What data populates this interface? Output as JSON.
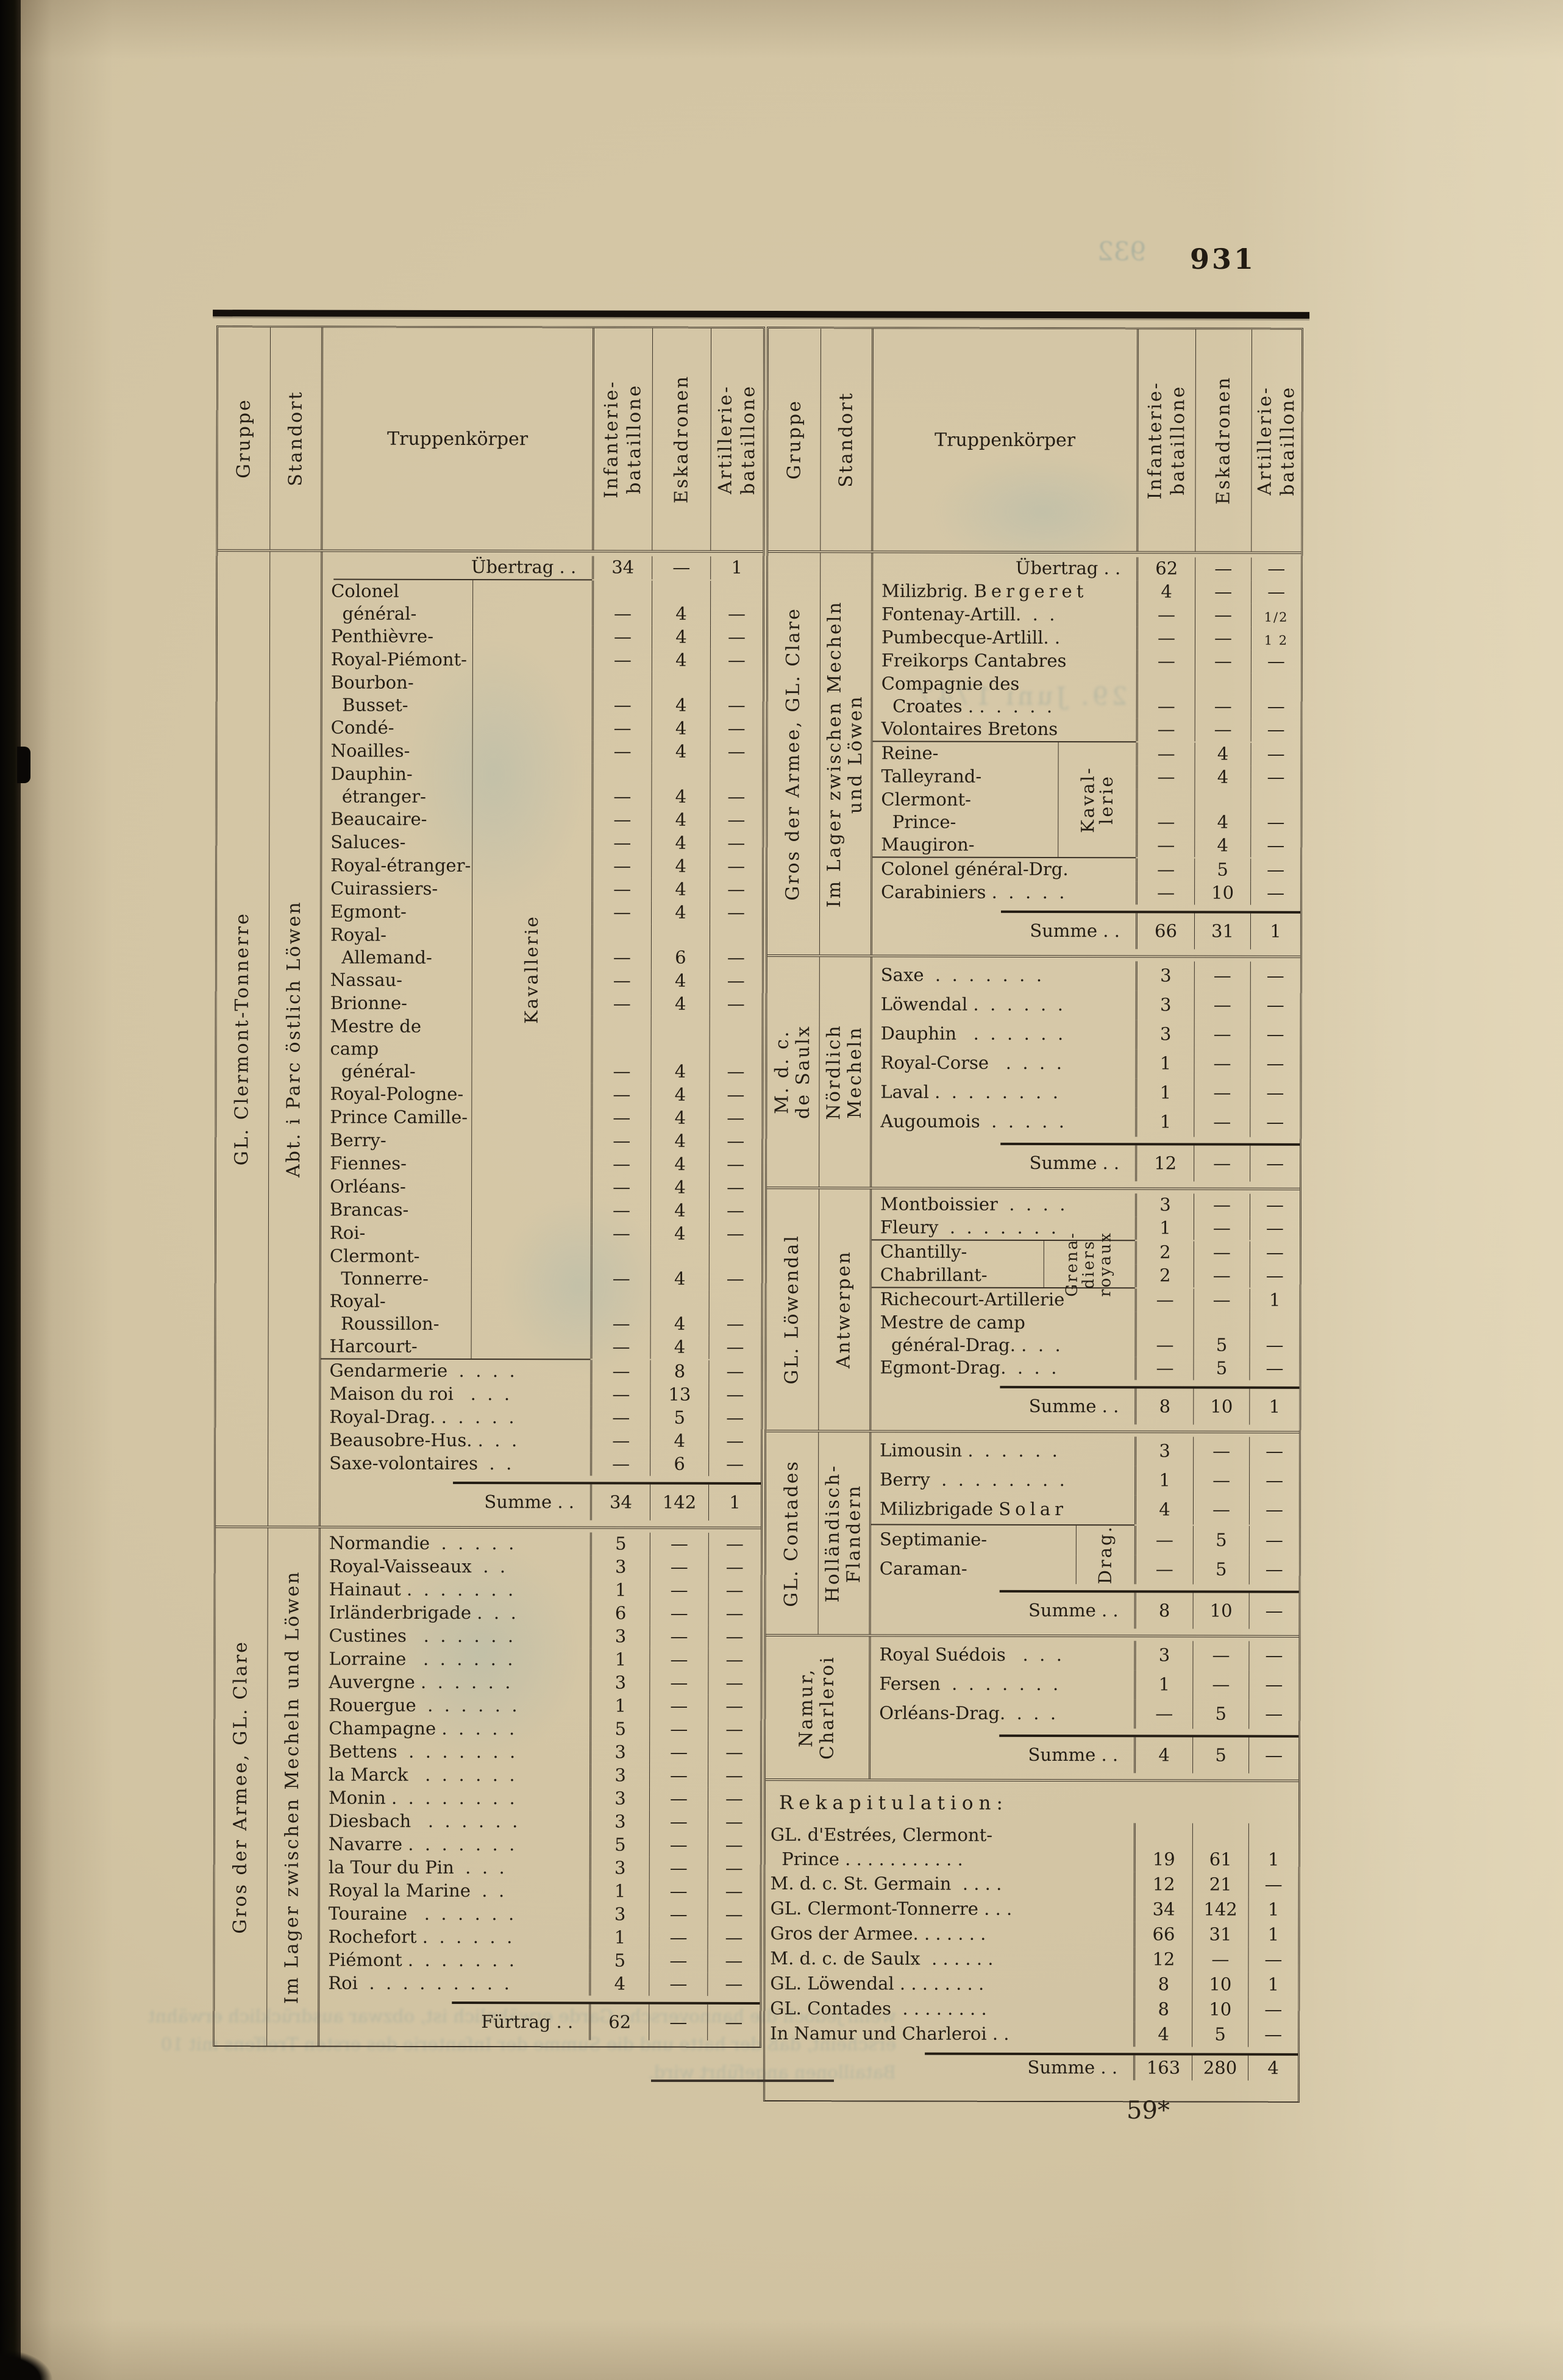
{
  "page": {
    "number": "931",
    "footer_mark": "59*"
  },
  "colors": {
    "paper": "#d5c7a7",
    "ink": "#241d14",
    "rule": "#3a3126",
    "heavy_bar": "#15100c",
    "bleed": "#7f9a96"
  },
  "header": {
    "gruppe": "Gruppe",
    "standort": "Standort",
    "truppen": "Truppenkörper",
    "inf": "Infanterie-\nbataillone",
    "esk": "Eskadronen",
    "art": "Artillerie-\nbataillone"
  },
  "left": {
    "s1": {
      "gruppe": "GL. Clermont-Tonnerre",
      "standort": "Abt. i Parc östlich Löwen",
      "uebertrag": {
        "n": "Übertrag . .",
        "i": "34",
        "e": "—",
        "a": "1"
      },
      "brace": "Kavallerie",
      "cav": [
        {
          "n": "Colonel\n  général-",
          "e": "4"
        },
        {
          "n": "Penthièvre-",
          "e": "4"
        },
        {
          "n": "Royal-Piémont-",
          "e": "4"
        },
        {
          "n": "Bourbon-\n  Busset-",
          "e": "4"
        },
        {
          "n": "Condé-",
          "e": "4"
        },
        {
          "n": "Noailles-",
          "e": "4"
        },
        {
          "n": "Dauphin-\n  étranger-",
          "e": "4"
        },
        {
          "n": "Beaucaire-",
          "e": "4"
        },
        {
          "n": "Saluces-",
          "e": "4"
        },
        {
          "n": "Royal-étranger-",
          "e": "4"
        },
        {
          "n": "Cuirassiers-",
          "e": "4"
        },
        {
          "n": "Egmont-",
          "e": "4"
        },
        {
          "n": "Royal-\n  Allemand-",
          "e": "6"
        },
        {
          "n": "Nassau-",
          "e": "4"
        },
        {
          "n": "Brionne-",
          "e": "4"
        },
        {
          "n": "Mestre de camp\n  général-",
          "e": "4"
        },
        {
          "n": "Royal-Pologne-",
          "e": "4"
        },
        {
          "n": "Prince Camille-",
          "e": "4"
        },
        {
          "n": "Berry-",
          "e": "4"
        },
        {
          "n": "Fiennes-",
          "e": "4"
        },
        {
          "n": "Orléans-",
          "e": "4"
        },
        {
          "n": "Brancas-",
          "e": "4"
        },
        {
          "n": "Roi-",
          "e": "4"
        },
        {
          "n": "Clermont-\n  Tonnerre-",
          "e": "4"
        },
        {
          "n": "Royal-\n  Roussillon-",
          "e": "4"
        },
        {
          "n": "Harcourt-",
          "e": "4"
        }
      ],
      "rows2": [
        {
          "n": "Gendarmerie  .  .  .  .",
          "e": "8"
        },
        {
          "n": "Maison du roi   .  .  .",
          "e": "13"
        },
        {
          "n": "Royal-Drag. .  .  .  .  .",
          "e": "5"
        },
        {
          "n": "Beausobre-Hus. .  .  .",
          "e": "4"
        },
        {
          "n": "Saxe-volontaires  .  .",
          "e": "6"
        }
      ],
      "summe": {
        "n": "Summe . .",
        "i": "34",
        "e": "142",
        "a": "1"
      }
    },
    "s2": {
      "gruppe": "Gros der Armee, GL. Clare",
      "standort": "Im Lager zwischen Mecheln und Löwen",
      "rows": [
        {
          "n": "Normandie  .  .  .  .  .",
          "i": "5"
        },
        {
          "n": "Royal-Vaisseaux  .  .",
          "i": "3"
        },
        {
          "n": "Hainaut .  .  .  .  .  .  .",
          "i": "1"
        },
        {
          "n": "Irländerbrigade .  .  .",
          "i": "6"
        },
        {
          "n": "Custines   .  .  .  .  .  .",
          "i": "3"
        },
        {
          "n": "Lorraine   .  .  .  .  .  .",
          "i": "1"
        },
        {
          "n": "Auvergne .  .  .  .  .  .",
          "i": "3"
        },
        {
          "n": "Rouergue  .  .  .  .  .  .",
          "i": "1"
        },
        {
          "n": "Champagne .  .  .  .  .",
          "i": "5"
        },
        {
          "n": "Bettens  .  .  .  .  .  .  .",
          "i": "3"
        },
        {
          "n": "la Marck   .  .  .  .  .  .",
          "i": "3"
        },
        {
          "n": "Monin .  .  .  .  .  .  .  .",
          "i": "3"
        },
        {
          "n": "Diesbach   .  .  .  .  .  .",
          "i": "3"
        },
        {
          "n": "Navarre .  .  .  .  .  .  .",
          "i": "5"
        },
        {
          "n": "la Tour du Pin  .  .  .",
          "i": "3"
        },
        {
          "n": "Royal la Marine  .  .",
          "i": "1"
        },
        {
          "n": "Touraine   .  .  .  .  .  .",
          "i": "3"
        },
        {
          "n": "Rochefort .  .  .  .  .  .",
          "i": "1"
        },
        {
          "n": "Piémont .  .  .  .  .  .  .",
          "i": "5"
        },
        {
          "n": "Roi  .  .  .  .  .  .  .  .  .",
          "i": "4"
        }
      ],
      "fuertrag": {
        "n": "Fürtrag . .",
        "i": "62",
        "e": "—",
        "a": "—"
      }
    }
  },
  "right": {
    "s1": {
      "gruppe": "Gros der Armee, GL. Clare",
      "standort": "Im Lager zwischen Mecheln\nund Löwen",
      "rowsA": [
        {
          "n": "Übertrag . .",
          "i": "62",
          "align": "right"
        },
        {
          "n": "Milizbrig.",
          "spaced": "Bergeret",
          "i": "4"
        },
        {
          "n": "Fontenay-Artill.  .  .",
          "a": "1/2"
        },
        {
          "n": "Pumbecque-Artlill. .",
          "a": "1 2"
        },
        {
          "n": "Freikorps Cantabres"
        },
        {
          "n": "Compagnie des\n  Croates . .  .  .  .  ."
        },
        {
          "n": "Volontaires Bretons"
        }
      ],
      "brace": "Kaval-\nlerie",
      "cav": [
        {
          "n": "Reine-",
          "e": "4"
        },
        {
          "n": "Talleyrand-",
          "e": "4"
        },
        {
          "n": "Clermont-\n  Prince-",
          "e": "4"
        },
        {
          "n": "Maugiron-",
          "e": "4"
        }
      ],
      "rowsB": [
        {
          "n": "Colonel général-Drg.",
          "e": "5"
        },
        {
          "n": "Carabiniers .  .  .  .  .",
          "e": "10"
        }
      ],
      "summe": {
        "n": "Summe . .",
        "i": "66",
        "e": "31",
        "a": "1"
      }
    },
    "s2": {
      "gruppe": "M. d. c.\nde Saulx",
      "standort": "Nördlich\nMecheln",
      "rows": [
        {
          "n": "Saxe  .  .  .  .  .  .  .",
          "i": "3"
        },
        {
          "n": "Löwendal .  .  .  .  .  .",
          "i": "3"
        },
        {
          "n": "Dauphin   .  .  .  .  .  .",
          "i": "3"
        },
        {
          "n": "Royal-Corse   .  .  .  .",
          "i": "1"
        },
        {
          "n": "Laval .  .  .  .  .  .  .  .",
          "i": "1"
        },
        {
          "n": "Augoumois  .  .  .  .  .",
          "i": "1"
        }
      ],
      "summe": {
        "n": "Summe . .",
        "i": "12",
        "e": "—",
        "a": "—"
      }
    },
    "s3": {
      "gruppe": "GL. Löwendal",
      "standort": "Antwerpen",
      "rowsA": [
        {
          "n": "Montboissier  .  .  .  .",
          "i": "3"
        },
        {
          "n": "Fleury  .  .  .  .  .  .  .",
          "i": "1"
        }
      ],
      "brace": "Grena-\ndiers\nroyaux",
      "grenadiers": [
        {
          "n": "Chantilly-",
          "i": "2"
        },
        {
          "n": "Chabrillant-",
          "i": "2"
        }
      ],
      "rowsB": [
        {
          "n": "Richecourt-Artillerie",
          "a": "1"
        },
        {
          "n": "Mestre de camp\n  général-Drag. .  .  .",
          "e": "5"
        },
        {
          "n": "Egmont-Drag.  .  .  .",
          "e": "5"
        }
      ],
      "summe": {
        "n": "Summe . .",
        "i": "8",
        "e": "10",
        "a": "1"
      }
    },
    "s4": {
      "gruppe": "GL. Contades",
      "standort": "Holländisch-\nFlandern",
      "rowsA": [
        {
          "n": "Limousin .  .  .  .  .  .",
          "i": "3"
        },
        {
          "n": "Berry  .  .  .  .  .  .  .  .",
          "i": "1"
        },
        {
          "n": "Milizbrigade",
          "spaced": "Solar",
          "i": "4"
        }
      ],
      "brace": "Drag.",
      "drag": [
        {
          "n": "Septimanie-",
          "e": "5"
        },
        {
          "n": "Caraman-",
          "e": "5"
        }
      ],
      "summe": {
        "n": "Summe . .",
        "i": "8",
        "e": "10",
        "a": "—"
      }
    },
    "s5": {
      "merged": "Namur,\nCharleroi",
      "rows": [
        {
          "n": "Royal Suédois   .  .  .",
          "i": "3"
        },
        {
          "n": "Fersen  .  .  .  .  .  .  .",
          "i": "1"
        },
        {
          "n": "Orléans-Drag.  .  .  .",
          "e": "5"
        }
      ],
      "summe": {
        "n": "Summe . .",
        "i": "4",
        "e": "5",
        "a": "—"
      }
    },
    "rekap": {
      "title": "Rekapitulation:",
      "rows": [
        {
          "n": "GL. d'Estrées, Clermont-\n  Prince . . . . . . . . . . .",
          "i": "19",
          "e": "61",
          "a": "1"
        },
        {
          "n": "M. d. c. St. Germain  . . . .",
          "i": "12",
          "e": "21"
        },
        {
          "n": "GL. Clermont-Tonnerre . . .",
          "i": "34",
          "e": "142",
          "a": "1"
        },
        {
          "n": "Gros der Armee. . . . . . .",
          "i": "66",
          "e": "31",
          "a": "1"
        },
        {
          "n": "M. d. c. de Saulx  . . . . . .",
          "i": "12"
        },
        {
          "n": "GL. Löwendal . . . . . . . .",
          "i": "8",
          "e": "10",
          "a": "1"
        },
        {
          "n": "GL. Contades  . . . . . . . .",
          "i": "8",
          "e": "10"
        },
        {
          "n": "In Namur und Charleroi . .",
          "i": "4",
          "e": "5"
        }
      ],
      "summe": {
        "n": "Summe . .",
        "i": "163",
        "e": "280",
        "a": "4"
      }
    }
  },
  "bleed_through": {
    "page_number_ghost": "932",
    "date_ghost": "29. Juni 1747",
    "footnote_lines": [
      "wenn jedoch die hannoversche Garde erwähnlich",
      "ist, obzwar ausdrücklich erwähnt erscheint, daß der",
      "hatte und die Summe der Infanterie des ersten",
      "Treffens mit 10 Bataillonen angeführt wird."
    ]
  }
}
